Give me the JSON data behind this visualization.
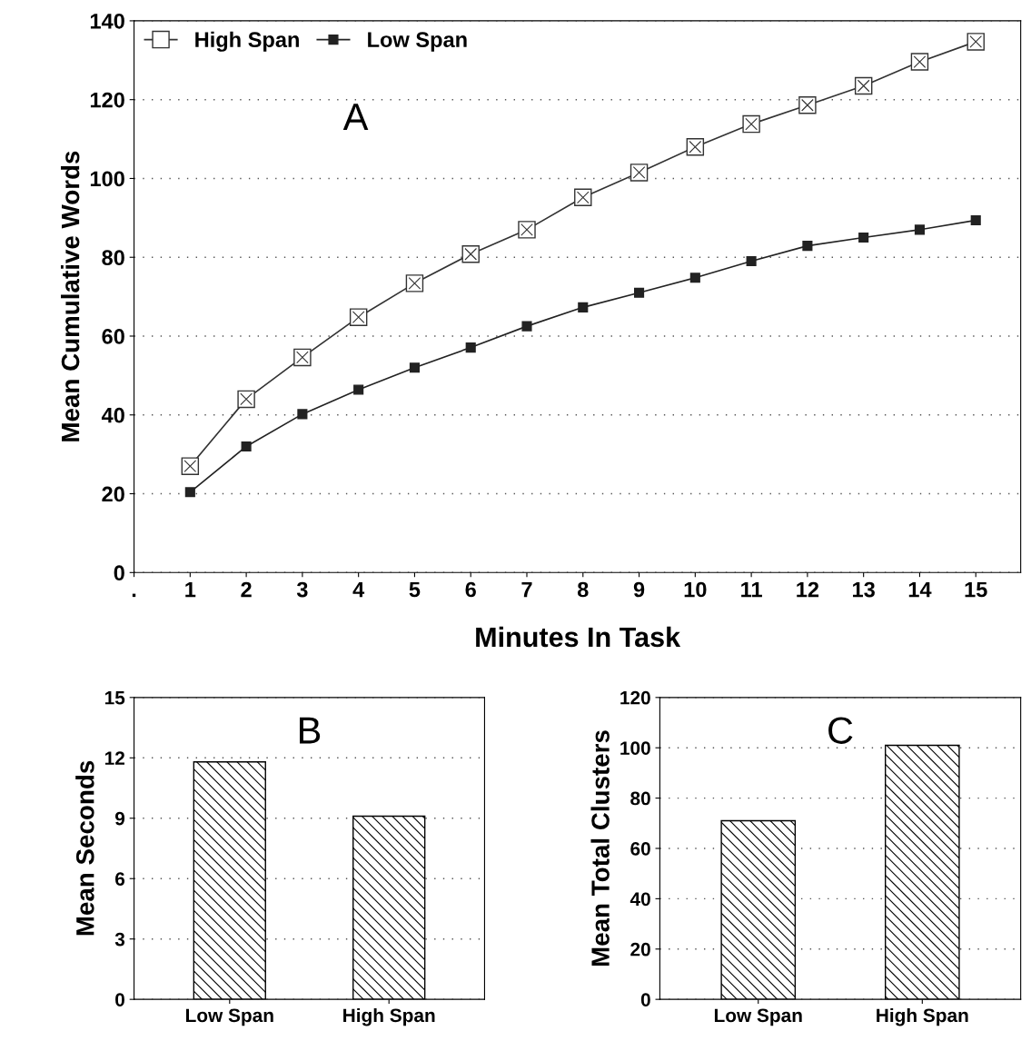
{
  "chart_data": [
    {
      "type": "line",
      "xlabel": "Minutes In Task",
      "ylabel": "Mean Cumulative Words",
      "annotations": [
        "A"
      ],
      "x": [
        1,
        2,
        3,
        4,
        5,
        6,
        7,
        8,
        9,
        10,
        11,
        12,
        13,
        14,
        15
      ],
      "series": [
        {
          "name": "High Span",
          "color": "#333333",
          "marker": "square",
          "values": [
            27,
            44,
            54.6,
            64.8,
            73.4,
            80.8,
            87,
            95.2,
            101.5,
            108,
            113.8,
            118.6,
            123.5,
            129.6,
            134.7
          ]
        },
        {
          "name": "Low Span",
          "color": "#222222",
          "marker": "square",
          "values": [
            20.4,
            32,
            40.2,
            46.4,
            52,
            57.1,
            62.5,
            67.3,
            71,
            74.8,
            79,
            82.9,
            85,
            87,
            89.4
          ]
        }
      ],
      "xlim": [
        0,
        15.8
      ],
      "xticks": [
        {
          "value": 0,
          "label": "."
        },
        1,
        2,
        3,
        4,
        5,
        6,
        7,
        8,
        9,
        10,
        11,
        12,
        13,
        14,
        15
      ],
      "ylim": [
        0,
        140
      ],
      "yticks": [
        0,
        20,
        40,
        60,
        80,
        100,
        120,
        140
      ],
      "grid": "y",
      "legend": "top left",
      "line_style": "solid"
    },
    {
      "type": "bar",
      "ylabel": "Mean Seconds",
      "annotations": [
        "B"
      ],
      "categories": [
        "Low Span",
        "High Span"
      ],
      "values": [
        11.8,
        9.1
      ],
      "color": "#000000",
      "ylim": [
        0,
        15
      ],
      "yticks": [
        0,
        3,
        6,
        9,
        12,
        15
      ],
      "grid": "y",
      "legend": false
    },
    {
      "type": "bar",
      "ylabel": "Mean Total Clusters",
      "annotations": [
        "C"
      ],
      "categories": [
        "Low Span",
        "High Span"
      ],
      "values": [
        71,
        101
      ],
      "color": "#000000",
      "ylim": [
        0,
        120
      ],
      "yticks": [
        0,
        20,
        40,
        60,
        80,
        100,
        120
      ],
      "grid": "y",
      "legend": false
    }
  ]
}
